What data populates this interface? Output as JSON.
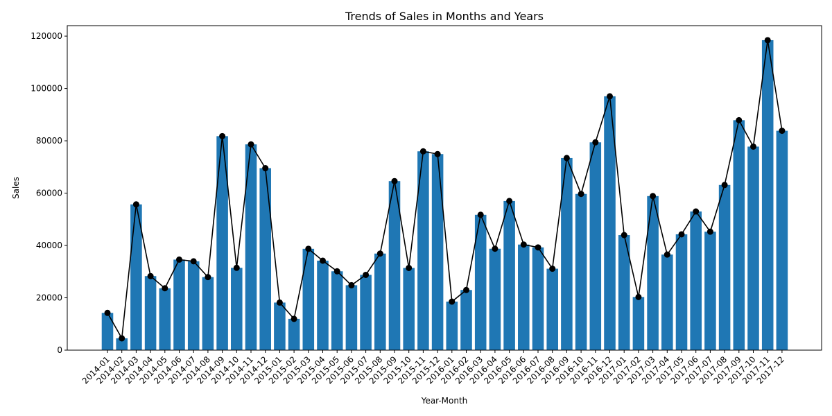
{
  "chart_data": {
    "type": "bar",
    "title": "Trends of Sales in Months and Years",
    "xlabel": "Year-Month",
    "ylabel": "Sales",
    "ylim": [
      0,
      124000
    ],
    "yticks": [
      0,
      20000,
      40000,
      60000,
      80000,
      100000,
      120000
    ],
    "grid": false,
    "legend": "none",
    "overlay": "line-with-markers",
    "bar_color": "#1f77b4",
    "line_color": "#000000",
    "categories": [
      "2014-01",
      "2014-02",
      "2014-03",
      "2014-04",
      "2014-05",
      "2014-06",
      "2014-07",
      "2014-08",
      "2014-09",
      "2014-10",
      "2014-11",
      "2014-12",
      "2015-01",
      "2015-02",
      "2015-03",
      "2015-04",
      "2015-05",
      "2015-06",
      "2015-07",
      "2015-08",
      "2015-09",
      "2015-10",
      "2015-11",
      "2015-12",
      "2016-01",
      "2016-02",
      "2016-03",
      "2016-04",
      "2016-05",
      "2016-06",
      "2016-07",
      "2016-08",
      "2016-09",
      "2016-10",
      "2016-11",
      "2016-12",
      "2017-01",
      "2017-02",
      "2017-03",
      "2017-04",
      "2017-05",
      "2017-06",
      "2017-07",
      "2017-08",
      "2017-09",
      "2017-10",
      "2017-11",
      "2017-12"
    ],
    "values": [
      14237,
      4520,
      55691,
      28295,
      23648,
      34595,
      33946,
      27909,
      81777,
      31453,
      78629,
      69546,
      18174,
      11951,
      38726,
      34195,
      30132,
      24797,
      28765,
      36898,
      64596,
      31405,
      75973,
      74920,
      18542,
      22979,
      51716,
      38750,
      56988,
      40345,
      39262,
      31116,
      73411,
      59688,
      79412,
      96999,
      43971,
      20301,
      58872,
      36522,
      44261,
      52982,
      45264,
      63121,
      87867,
      77777,
      118448,
      83829
    ]
  }
}
